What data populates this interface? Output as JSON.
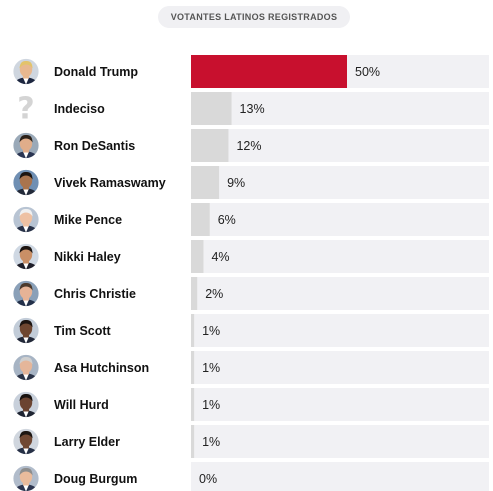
{
  "header": {
    "title": "VOTANTES LATINOS REGISTRADOS"
  },
  "colors": {
    "leader_bar": "#c8102e",
    "other_bar": "#d9d9d9",
    "track": "#f1f1f4",
    "undecided_icon": "#d4d4d4"
  },
  "chart_data": {
    "type": "bar",
    "orientation": "horizontal",
    "title": "VOTANTES LATINOS REGISTRADOS",
    "xlim": [
      0,
      100
    ],
    "categories": [
      "Donald Trump",
      "Indeciso",
      "Ron DeSantis",
      "Vivek Ramaswamy",
      "Mike Pence",
      "Nikki Haley",
      "Chris Christie",
      "Tim Scott",
      "Asa Hutchinson",
      "Will Hurd",
      "Larry Elder",
      "Doug Burgum"
    ],
    "values": [
      50,
      13,
      12,
      9,
      6,
      4,
      2,
      1,
      1,
      1,
      1,
      0
    ],
    "value_labels": [
      "50%",
      "13%",
      "12%",
      "9%",
      "6%",
      "4%",
      "2%",
      "1%",
      "1%",
      "1%",
      "1%",
      "0%"
    ],
    "icons": [
      "candidate-portrait-icon",
      "question-mark-icon",
      "candidate-portrait-icon",
      "candidate-portrait-icon",
      "candidate-portrait-icon",
      "candidate-portrait-icon",
      "candidate-portrait-icon",
      "candidate-portrait-icon",
      "candidate-portrait-icon",
      "candidate-portrait-icon",
      "candidate-portrait-icon",
      "candidate-portrait-icon"
    ],
    "portrait_colors": [
      {
        "skin": "#e8b88f",
        "hair": "#e3c36a",
        "suit": "#1d2740",
        "bg": "#cfd6df"
      },
      {
        "skin": "#d4d4d4",
        "hair": "#d4d4d4",
        "suit": "#d4d4d4",
        "bg": "#ffffff"
      },
      {
        "skin": "#e0ad8a",
        "hair": "#2b2018",
        "suit": "#2a3552",
        "bg": "#9aa9b8"
      },
      {
        "skin": "#a9744e",
        "hair": "#1b1410",
        "suit": "#232a3a",
        "bg": "#6f8fb3"
      },
      {
        "skin": "#eec1a3",
        "hair": "#f0f0f0",
        "suit": "#283248",
        "bg": "#b8c4d3"
      },
      {
        "skin": "#c98f66",
        "hair": "#1d1512",
        "suit": "#1f1f2a",
        "bg": "#cfd8e3"
      },
      {
        "skin": "#e6b396",
        "hair": "#4c3a2c",
        "suit": "#23304a",
        "bg": "#8aa0b8"
      },
      {
        "skin": "#6e4630",
        "hair": "#1c1410",
        "suit": "#222838",
        "bg": "#c2ccd8"
      },
      {
        "skin": "#e5b69a",
        "hair": "#cfcfcf",
        "suit": "#2b3448",
        "bg": "#a7b4c4"
      },
      {
        "skin": "#6b4431",
        "hair": "#181210",
        "suit": "#1f2533",
        "bg": "#c8d0db"
      },
      {
        "skin": "#704833",
        "hair": "#1c1612",
        "suit": "#263046",
        "bg": "#d0d6de"
      },
      {
        "skin": "#e9bb9c",
        "hair": "#8d8d8d",
        "suit": "#2c3550",
        "bg": "#b1bccb"
      }
    ],
    "grid": false,
    "legend": "none"
  }
}
